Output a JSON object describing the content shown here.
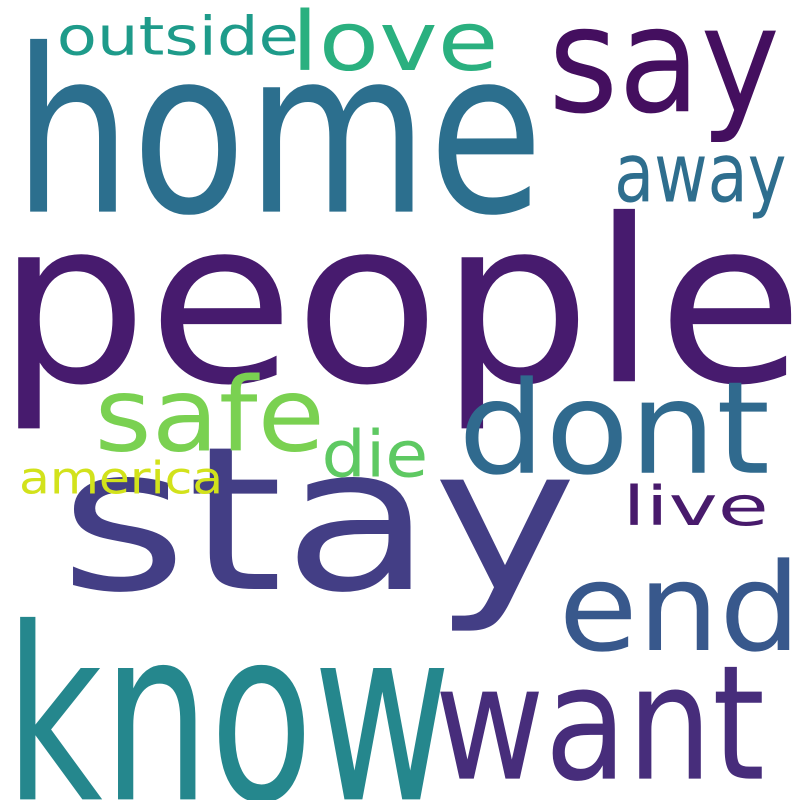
{
  "words": [
    {
      "id": "people",
      "text": "people",
      "color": "#471b6e"
    },
    {
      "id": "home",
      "text": "home",
      "color": "#2c6f8e"
    },
    {
      "id": "stay",
      "text": "stay",
      "color": "#433e85"
    },
    {
      "id": "know",
      "text": "know",
      "color": "#25878d"
    },
    {
      "id": "say",
      "text": "say",
      "color": "#440f5f"
    },
    {
      "id": "dont",
      "text": "dont",
      "color": "#306a8e"
    },
    {
      "id": "want",
      "text": "want",
      "color": "#472d7b"
    },
    {
      "id": "end",
      "text": "end",
      "color": "#38588c"
    },
    {
      "id": "love",
      "text": "love",
      "color": "#2ab07f"
    },
    {
      "id": "away",
      "text": "away",
      "color": "#2e6e8e"
    },
    {
      "id": "outside",
      "text": "outside",
      "color": "#1e9b8a"
    },
    {
      "id": "safe",
      "text": "safe",
      "color": "#7ad151"
    },
    {
      "id": "die",
      "text": "die",
      "color": "#5ec962"
    },
    {
      "id": "america",
      "text": "america",
      "color": "#d2e21b"
    },
    {
      "id": "live",
      "text": "live",
      "color": "#481a6c"
    }
  ]
}
